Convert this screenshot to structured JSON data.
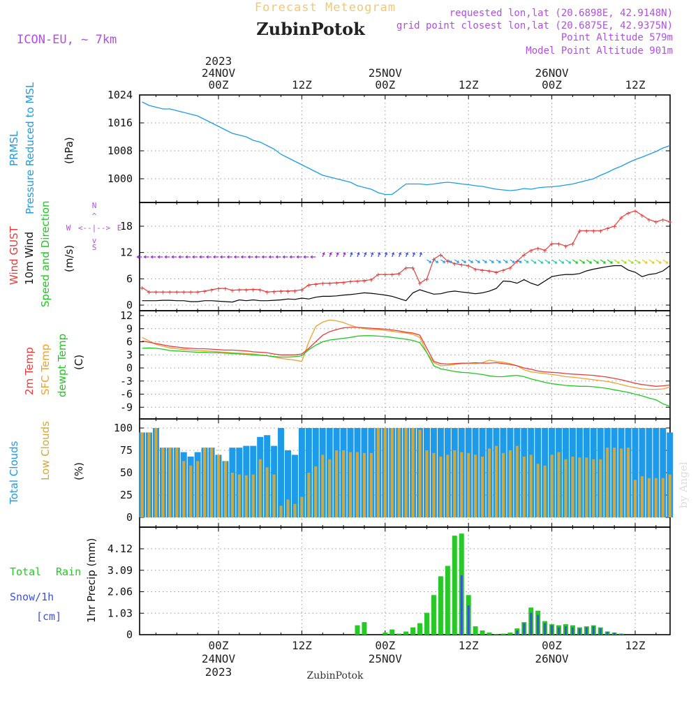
{
  "header": {
    "title": "Forecast Meteogram",
    "location": "ZubinPotok",
    "model": "ICON-EU, ~ 7km",
    "requested": "requested lon,lat (20.6898E, 42.9148N)",
    "closest": "grid point closest lon,lat (20.6875E, 42.9375N)",
    "point_altitude": "Point Altitude 579m",
    "model_altitude": "Model Point Altitude 901m",
    "footer_location": "ZubinPotok",
    "credit": "by Angel"
  },
  "time_axis": {
    "year": "2023",
    "ticks": [
      {
        "h": 0,
        "label": "00Z",
        "date": "24NOV"
      },
      {
        "h": 12,
        "label": "12Z",
        "date": ""
      },
      {
        "h": 24,
        "label": "00Z",
        "date": "25NOV"
      },
      {
        "h": 36,
        "label": "12Z",
        "date": ""
      },
      {
        "h": 48,
        "label": "00Z",
        "date": "26NOV"
      },
      {
        "h": 60,
        "label": "12Z",
        "date": ""
      }
    ]
  },
  "colors": {
    "prmsl": "#1e9be8",
    "gust": "#e83c3c",
    "wind": "#000000",
    "dir_label": "#1ec81e",
    "temp2m": "#e83c3c",
    "sfc": "#f0a030",
    "dewpt": "#1ec81e",
    "total_clouds": "#1e9be8",
    "low_clouds": "#d2a83c",
    "rain": "#28c828",
    "snow": "#3c50e8",
    "purple": "#b050e0"
  },
  "labels": {
    "prmsl": [
      "PRMSL",
      "Pressure Reduced to MSL",
      "(hPa)"
    ],
    "wind": [
      "Wind GUST",
      "10m Wind",
      "Speed and Direction",
      "(m/s)"
    ],
    "compass": {
      "n": "N",
      "w": "W",
      "e": "E",
      "s": "S"
    },
    "temp": [
      "2m Temp",
      "SFC Temp",
      "dewpt Temp",
      "(C)"
    ],
    "clouds": [
      "Total Clouds",
      "Low Clouds",
      "(%)"
    ],
    "precip": [
      "Total",
      "Rain",
      "Snow/1h",
      "[cm]",
      "1hr Precip (mm)"
    ]
  },
  "chart_data": [
    {
      "type": "line",
      "name": "prmsl",
      "x_start": -11,
      "x_step": 1,
      "y_ticks": [
        "1000",
        "1008",
        "1016",
        "1024"
      ],
      "ylim": [
        992,
        1024
      ],
      "series": [
        {
          "name": "PRMSL",
          "values": [
            1022,
            1021,
            1020.5,
            1020,
            1020,
            1019.5,
            1019,
            1018.5,
            1018,
            1017,
            1016,
            1015,
            1014,
            1013,
            1012.5,
            1012,
            1011,
            1010.5,
            1009.5,
            1008.5,
            1007,
            1006,
            1005,
            1004,
            1003,
            1002,
            1001,
            1000.5,
            1000,
            999.5,
            999,
            998,
            997.5,
            997,
            996,
            995.5,
            995.5,
            997,
            998.5,
            998.5,
            998.5,
            998.3,
            998.5,
            998.8,
            999,
            998.8,
            998.5,
            998.3,
            998,
            997.8,
            997.4,
            997,
            996.8,
            996.6,
            996.8,
            997.2,
            997,
            997.4,
            997.6,
            997.7,
            997.9,
            998.2,
            998.5,
            999,
            999.5,
            1000,
            1001,
            1001.8,
            1002.8,
            1003.6,
            1004.6,
            1005.5,
            1006.2,
            1007,
            1007.8,
            1008.8,
            1009.5,
            1010,
            1010.5,
            1011,
            1012,
            1013,
            1014,
            1015,
            1016
          ]
        }
      ]
    },
    {
      "type": "line",
      "name": "wind",
      "x_start": -11,
      "x_step": 1,
      "y_ticks": [
        "0",
        "6",
        "12",
        "18"
      ],
      "ylim": [
        0,
        24
      ],
      "series": [
        {
          "name": "Wind GUST",
          "values": [
            4,
            3,
            3,
            3,
            3,
            3,
            3,
            3,
            3,
            3.2,
            3.5,
            3.8,
            3.8,
            3.4,
            3.5,
            3.5,
            3.6,
            3.5,
            3,
            3.1,
            3.2,
            3.2,
            3.3,
            3.5,
            4.6,
            4.8,
            5,
            5,
            5.1,
            5.2,
            5.4,
            5.5,
            5.6,
            5.8,
            7,
            7,
            7,
            7.2,
            8.5,
            8.5,
            5,
            6,
            10.5,
            11.5,
            10,
            9.5,
            9.2,
            9,
            8.2,
            8,
            7.8,
            7.5,
            8,
            8.5,
            10,
            11.5,
            12.5,
            13,
            12.5,
            14,
            14,
            13.5,
            14,
            17,
            17,
            17,
            17,
            17.5,
            18,
            20,
            21,
            21.5,
            20.5,
            19.5,
            19,
            19.5,
            19,
            20,
            20,
            19.5,
            19.5,
            19.5,
            17.5,
            17.5,
            17,
            15,
            15,
            15
          ]
        },
        {
          "name": "10m Wind",
          "values": [
            1,
            1,
            1,
            1.1,
            1.1,
            1,
            1,
            0.8,
            0.8,
            1,
            1,
            0.9,
            0.8,
            0.7,
            1.2,
            1,
            1.2,
            1,
            1,
            1.1,
            1.2,
            1.4,
            1.3,
            1.6,
            1.4,
            1.8,
            2,
            2,
            2.1,
            2.3,
            2.4,
            2.6,
            2.8,
            2.7,
            2.5,
            2.3,
            2,
            1.5,
            1,
            2.8,
            3.5,
            3,
            2.5,
            2.6,
            3,
            3.2,
            3,
            2.8,
            2.6,
            2.8,
            3.2,
            3.8,
            5.5,
            5.4,
            5,
            5.8,
            5,
            4.5,
            5.5,
            6.5,
            6.8,
            7,
            7,
            7.2,
            7.8,
            8.2,
            8.5,
            8.8,
            9,
            9,
            8,
            7.5,
            6.5,
            7,
            7.2,
            7.8,
            9,
            8.5,
            8,
            8,
            7.8,
            7.6,
            7.5,
            6.8,
            6.6,
            6.5,
            5.7
          ]
        }
      ]
    },
    {
      "type": "line",
      "name": "temperature",
      "x_start": -11,
      "x_step": 1,
      "y_ticks": [
        "-9",
        "-6",
        "-3",
        "0",
        "3",
        "6",
        "9",
        "12"
      ],
      "ylim": [
        -11,
        12
      ],
      "series": [
        {
          "name": "2m Temp",
          "values": [
            6.2,
            5.9,
            5.6,
            5.3,
            5,
            4.8,
            4.6,
            4.5,
            4.4,
            4.4,
            4.3,
            4.2,
            4.1,
            4.1,
            4,
            3.9,
            3.7,
            3.6,
            3.5,
            3.2,
            3,
            3,
            3,
            3.2,
            4.5,
            6,
            7.5,
            8.3,
            8.8,
            9.2,
            9.3,
            9.3,
            9.2,
            9.1,
            9,
            8.9,
            8.7,
            8.5,
            8.2,
            8,
            7.5,
            4.5,
            1.5,
            1,
            0.9,
            1,
            1.1,
            1.1,
            1.2,
            1.1,
            1.1,
            1.2,
            1,
            0.8,
            0.5,
            0,
            -0.3,
            -0.7,
            -0.9,
            -1,
            -1.1,
            -1.3,
            -1.4,
            -1.5,
            -1.6,
            -1.7,
            -1.9,
            -2.1,
            -2.4,
            -2.7,
            -3.1,
            -3.5,
            -3.8,
            -4,
            -4.2,
            -4.1,
            -3.9,
            -3.5,
            -2.6,
            -2,
            -1.5,
            -1.3,
            -1,
            -0.8,
            -0.8,
            -1.5,
            -2.5,
            -3,
            -3.2
          ]
        },
        {
          "name": "SFC Temp",
          "values": [
            7,
            6.2,
            5.4,
            5,
            4.6,
            4.4,
            4.2,
            4.1,
            4,
            3.9,
            3.8,
            3.7,
            3.6,
            3.5,
            3.4,
            3.3,
            3.2,
            3,
            2.8,
            2.5,
            2.2,
            2,
            1.8,
            1.5,
            6,
            9.5,
            10.5,
            11,
            10.8,
            10.4,
            9.8,
            9.3,
            9,
            8.8,
            8.8,
            8.6,
            8.4,
            8.2,
            8,
            7.7,
            7,
            3.5,
            1.2,
            0.5,
            0.6,
            0.8,
            1,
            1.1,
            1,
            1.2,
            1.8,
            1.5,
            1.3,
            1,
            0.5,
            -0.4,
            -0.9,
            -1.1,
            -1.3,
            -1.5,
            -1.7,
            -2,
            -2.1,
            -2.3,
            -2.5,
            -2.7,
            -2.9,
            -3.1,
            -3.4,
            -3.8,
            -4.2,
            -4.5,
            -4.8,
            -4.9,
            -4.9,
            -4.8,
            -4.4,
            -4,
            -2.5,
            -1.2,
            -0.5,
            0,
            -0.2,
            -0.4,
            -1,
            -2.2,
            -3.3,
            -4,
            -4.6
          ]
        },
        {
          "name": "dewpt Temp",
          "values": [
            4.5,
            4.6,
            4.5,
            4.3,
            4,
            3.9,
            3.8,
            3.7,
            3.6,
            3.6,
            3.5,
            3.5,
            3.4,
            3.3,
            3.2,
            3.1,
            3,
            2.9,
            2.8,
            2.6,
            2.5,
            2.5,
            2.6,
            2.8,
            4.2,
            5.2,
            6,
            6.4,
            6.6,
            6.8,
            7,
            7.3,
            7.4,
            7.4,
            7.3,
            7.2,
            7,
            6.8,
            6.6,
            6.3,
            5.8,
            3.5,
            0.5,
            -0.2,
            -0.5,
            -0.8,
            -1,
            -1.1,
            -1.3,
            -1.5,
            -1.8,
            -2,
            -2,
            -1.8,
            -1.7,
            -2,
            -2.5,
            -2.9,
            -3.3,
            -3.6,
            -3.8,
            -4,
            -4.1,
            -4.2,
            -4.2,
            -4.3,
            -4.5,
            -4.7,
            -5,
            -5.3,
            -5.6,
            -6,
            -6.4,
            -6.9,
            -7.3,
            -8.2,
            -8.8,
            -8.6,
            -8.3,
            -7.9,
            -7.5,
            -7.3,
            -7.4,
            -7.6,
            -8.2,
            -8.6,
            -8.8,
            -9.5,
            -9.3
          ]
        }
      ]
    },
    {
      "type": "bar",
      "name": "clouds",
      "x_start": -11,
      "x_step": 1,
      "y_ticks": [
        "0",
        "25",
        "50",
        "75",
        "100"
      ],
      "ylim": [
        0,
        100
      ],
      "series": [
        {
          "name": "Total Clouds",
          "values": [
            95,
            95,
            100,
            78,
            78,
            78,
            73,
            68,
            73,
            78,
            78,
            70,
            63,
            78,
            78,
            80,
            80,
            90,
            92,
            80,
            100,
            75,
            70,
            100,
            100,
            100,
            100,
            100,
            100,
            100,
            100,
            100,
            100,
            100,
            100,
            100,
            100,
            100,
            100,
            100,
            100,
            100,
            100,
            100,
            100,
            100,
            100,
            100,
            100,
            100,
            100,
            100,
            100,
            100,
            100,
            100,
            100,
            100,
            100,
            100,
            100,
            100,
            100,
            100,
            100,
            100,
            100,
            100,
            100,
            100,
            100,
            100,
            100,
            100,
            100,
            100,
            95,
            46,
            44,
            44,
            44,
            50,
            90,
            80,
            62,
            26,
            35,
            22,
            18,
            20,
            12
          ]
        },
        {
          "name": "Low Clouds",
          "values": [
            95,
            95,
            100,
            78,
            78,
            78,
            63,
            58,
            63,
            78,
            78,
            70,
            63,
            50,
            48,
            47,
            48,
            65,
            56,
            48,
            13,
            20,
            15,
            23,
            50,
            57,
            70,
            65,
            75,
            75,
            73,
            73,
            72,
            72,
            100,
            100,
            100,
            100,
            100,
            100,
            98,
            75,
            72,
            68,
            70,
            75,
            73,
            72,
            70,
            68,
            77,
            80,
            72,
            75,
            80,
            68,
            70,
            60,
            58,
            70,
            73,
            65,
            68,
            67,
            67,
            65,
            65,
            78,
            78,
            77,
            78,
            42,
            46,
            44,
            44,
            44,
            48,
            88,
            80,
            62,
            26,
            35,
            22,
            18,
            20,
            12
          ]
        }
      ]
    },
    {
      "type": "bar",
      "name": "precipitation",
      "x_start": -11,
      "x_step": 1,
      "y_ticks": [
        "0",
        "1.03",
        "2.06",
        "3.09",
        "4.12"
      ],
      "ylim": [
        0,
        4.9
      ],
      "series": [
        {
          "name": "Total Rain",
          "values": [
            0,
            0,
            0,
            0,
            0,
            0,
            0,
            0,
            0,
            0,
            0,
            0,
            0,
            0,
            0,
            0,
            0,
            0,
            0,
            0,
            0,
            0,
            0,
            0,
            0,
            0,
            0,
            0,
            0,
            0,
            0,
            0.45,
            0.6,
            0,
            0,
            0.1,
            0.25,
            0.05,
            0.15,
            0.35,
            0.55,
            1.05,
            1.9,
            2.8,
            3.3,
            4.75,
            4.85,
            1.9,
            0.4,
            0.2,
            0.1,
            0.02,
            0.05,
            0.1,
            0.3,
            0.6,
            1.3,
            1.15,
            0.65,
            0.5,
            0.45,
            0.5,
            0.45,
            0.35,
            0.4,
            0.45,
            0.35,
            0.15,
            0.1,
            0.05
          ]
        },
        {
          "name": "Snow/1h",
          "values": [
            0,
            0,
            0,
            0,
            0,
            0,
            0,
            0,
            0,
            0,
            0,
            0,
            0,
            0,
            0,
            0,
            0,
            0,
            0,
            0,
            0,
            0,
            0,
            0,
            0,
            0,
            0,
            0,
            0,
            0,
            0,
            0,
            0,
            0,
            0,
            0,
            0,
            0,
            0,
            0,
            0,
            0,
            0,
            0,
            0,
            0,
            2.85,
            1.4,
            0,
            0,
            0,
            0,
            0,
            0,
            0.2,
            0.55,
            1.05,
            0.95,
            0.55,
            0.45,
            0.35,
            0.4,
            0.35,
            0.3,
            0.35,
            0.4,
            0.3,
            0.15,
            0.1,
            0.05
          ]
        }
      ]
    }
  ]
}
